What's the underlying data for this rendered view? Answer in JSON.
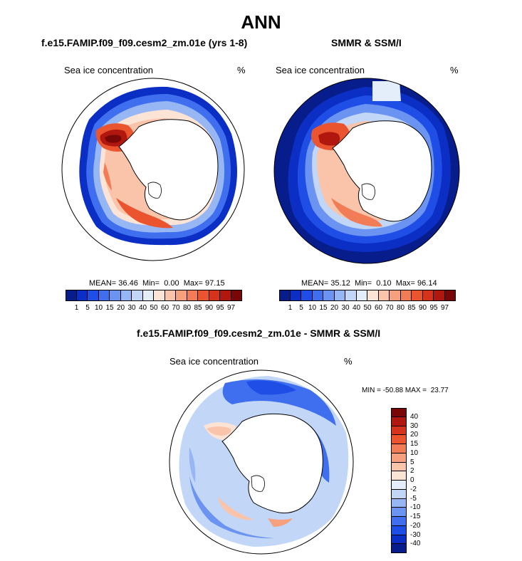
{
  "main_title": "ANN",
  "panels": [
    {
      "title": "f.e15.FAMIP.f09_f09.cesm2_zm.01e (yrs 1-8)",
      "variable": "Sea ice concentration",
      "units": "%",
      "stats": {
        "mean_label": "MEAN=",
        "mean": "36.46",
        "min_label": "Min=",
        "min": "0.00",
        "max_label": "Max=",
        "max": "97.15"
      }
    },
    {
      "title": "SMMR & SSM/I",
      "variable": "Sea ice concentration",
      "units": "%",
      "stats": {
        "mean_label": "MEAN=",
        "mean": "35.12",
        "min_label": "Min=",
        "min": "0.10",
        "max_label": "Max=",
        "max": "96.14"
      }
    },
    {
      "title": "f.e15.FAMIP.f09_f09.cesm2_zm.01e - SMMR & SSM/I",
      "variable": "Sea ice concentration",
      "units": "%",
      "minmax": "MIN = -50.88 MAX =  23.77"
    }
  ],
  "colorbar_abs": {
    "levels": [
      "1",
      "5",
      "10",
      "15",
      "20",
      "30",
      "40",
      "50",
      "60",
      "70",
      "80",
      "85",
      "90",
      "95",
      "97"
    ],
    "colors": [
      "#081d8c",
      "#0b2fc4",
      "#1f4ee6",
      "#3f6fee",
      "#6a93f2",
      "#96b6f4",
      "#c2d6f7",
      "#e4eefa",
      "#fbe3d6",
      "#f9c4aa",
      "#f6a07e",
      "#f27c56",
      "#ea5530",
      "#d5331b",
      "#b0170f",
      "#7a0707"
    ]
  },
  "colorbar_diff": {
    "levels": [
      "40",
      "30",
      "20",
      "15",
      "10",
      "5",
      "2",
      "0",
      "-2",
      "-5",
      "-10",
      "-15",
      "-20",
      "-30",
      "-40"
    ],
    "colors": [
      "#7a0707",
      "#b0170f",
      "#d5331b",
      "#ea5530",
      "#f27c56",
      "#f6a07e",
      "#f9c4aa",
      "#fbe3d6",
      "#e4eefa",
      "#c2d6f7",
      "#96b6f4",
      "#6a93f2",
      "#3f6fee",
      "#1f4ee6",
      "#0b2fc4",
      "#081d8c"
    ]
  }
}
